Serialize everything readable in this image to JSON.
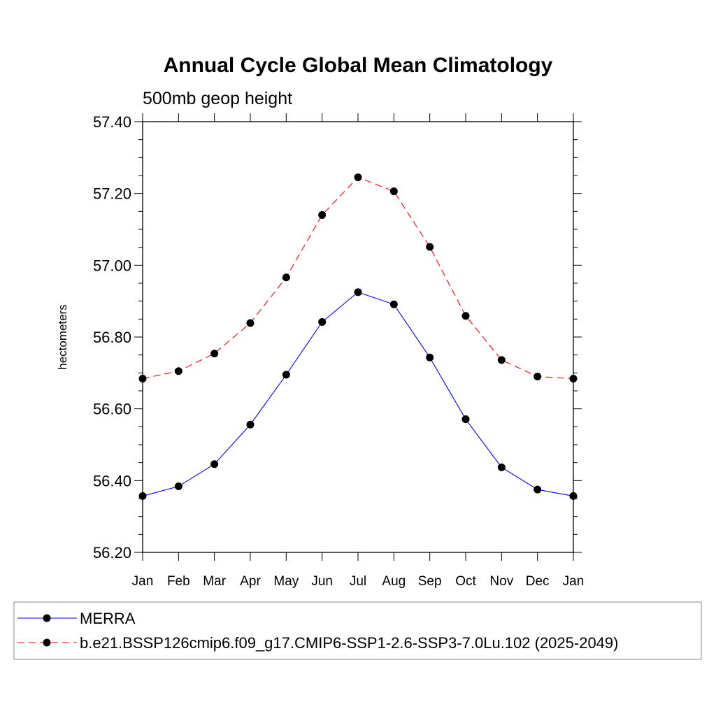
{
  "chart_data": {
    "type": "line",
    "title": "Annual Cycle Global Mean Climatology",
    "subtitle": "500mb geop height",
    "xlabel": "",
    "ylabel": "hectometers",
    "categories": [
      "Jan",
      "Feb",
      "Mar",
      "Apr",
      "May",
      "Jun",
      "Jul",
      "Aug",
      "Sep",
      "Oct",
      "Nov",
      "Dec",
      "Jan"
    ],
    "ylim": [
      56.2,
      57.4
    ],
    "yticks": [
      56.2,
      56.4,
      56.6,
      56.8,
      57.0,
      57.2,
      57.4
    ],
    "ytick_labels": [
      "56.20",
      "56.40",
      "56.60",
      "56.80",
      "57.00",
      "57.20",
      "57.40"
    ],
    "grid": false,
    "legend_position": "bottom",
    "series": [
      {
        "name": "MERRA",
        "color": "#0000ff",
        "line_style": "solid",
        "marker": "filled-circle",
        "values": [
          56.357,
          56.384,
          56.446,
          56.556,
          56.695,
          56.842,
          56.925,
          56.891,
          56.743,
          56.571,
          56.437,
          56.375,
          56.357
        ]
      },
      {
        "name": "b.e21.BSSP126cmip6.f09_g17.CMIP6-SSP1-2.6-SSP3-7.0Lu.102 (2025-2049)",
        "color": "#ff0000",
        "line_style": "dashed",
        "marker": "filled-circle",
        "values": [
          56.684,
          56.705,
          56.754,
          56.839,
          56.966,
          57.14,
          57.245,
          57.206,
          57.051,
          56.859,
          56.736,
          56.69,
          56.684
        ]
      }
    ]
  }
}
